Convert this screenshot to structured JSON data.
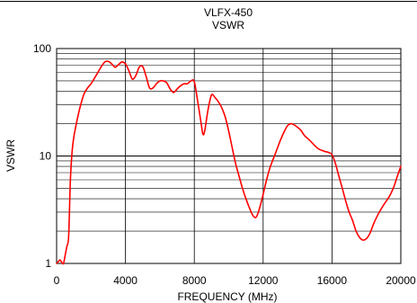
{
  "chart_data": {
    "type": "line",
    "title": "VLFX-450",
    "subtitle": "VSWR",
    "xlabel": "FREQUENCY (MHz)",
    "ylabel": "VSWR",
    "xlim": [
      0,
      20000
    ],
    "ylim": [
      1,
      100
    ],
    "y_scale": "log",
    "grid": true,
    "x_ticks": [
      0,
      4000,
      8000,
      12000,
      16000,
      20000
    ],
    "x_tick_labels": [
      "0",
      "4000",
      "8000",
      "12000",
      "16000",
      "20000"
    ],
    "y_ticks": [
      1,
      10,
      100
    ],
    "y_tick_labels": [
      "1",
      "10",
      "100"
    ],
    "series": [
      {
        "color": "#ff0000",
        "x": [
          0,
          100,
          200,
          300,
          400,
          500,
          600,
          700,
          800,
          900,
          1000,
          1200,
          1400,
          1600,
          1800,
          2000,
          2200,
          2400,
          2600,
          2800,
          3000,
          3200,
          3400,
          3600,
          3800,
          4000,
          4200,
          4400,
          4600,
          4800,
          5000,
          5200,
          5400,
          5600,
          5800,
          6000,
          6200,
          6400,
          6600,
          6800,
          7000,
          7200,
          7400,
          7600,
          7800,
          8000,
          8200,
          8400,
          8500,
          8600,
          8800,
          9000,
          9200,
          9400,
          9600,
          9800,
          10000,
          10200,
          10400,
          10600,
          10800,
          11000,
          11200,
          11400,
          11600,
          11800,
          12000,
          12200,
          12400,
          12600,
          12800,
          13000,
          13200,
          13400,
          13600,
          13800,
          14000,
          14200,
          14400,
          14600,
          14800,
          15000,
          15200,
          15400,
          15600,
          15800,
          16000,
          16200,
          16400,
          16600,
          16800,
          17000,
          17200,
          17400,
          17600,
          17800,
          18000,
          18200,
          18400,
          18600,
          18800,
          19000,
          19200,
          19400,
          19600,
          19800,
          20000
        ],
        "y": [
          1.0,
          1.04,
          1.08,
          1.02,
          1.0,
          1.2,
          1.45,
          1.8,
          6.0,
          11,
          15,
          22,
          30,
          38,
          43,
          47,
          53,
          60,
          68,
          75,
          76,
          72,
          67,
          71,
          75,
          72,
          62,
          52,
          56,
          67,
          68,
          55,
          43,
          43,
          47,
          50,
          50,
          48,
          42,
          39,
          42,
          45,
          47,
          47,
          50,
          49,
          32,
          20,
          16,
          17,
          27,
          37,
          35,
          32,
          28,
          23,
          17,
          12,
          8.5,
          6.5,
          5.0,
          4.0,
          3.3,
          2.8,
          2.7,
          3.3,
          4.4,
          6.0,
          7.8,
          9.5,
          11.5,
          14,
          16.5,
          19,
          20,
          19.5,
          18.5,
          17.3,
          15.5,
          14.5,
          13.5,
          12.5,
          11.7,
          11.3,
          11,
          10.8,
          10.3,
          8.5,
          6.5,
          5.0,
          3.8,
          3.0,
          2.5,
          2.0,
          1.75,
          1.65,
          1.7,
          1.9,
          2.3,
          2.7,
          3.1,
          3.5,
          3.9,
          4.4,
          5.2,
          6.5,
          8.0
        ]
      }
    ]
  }
}
